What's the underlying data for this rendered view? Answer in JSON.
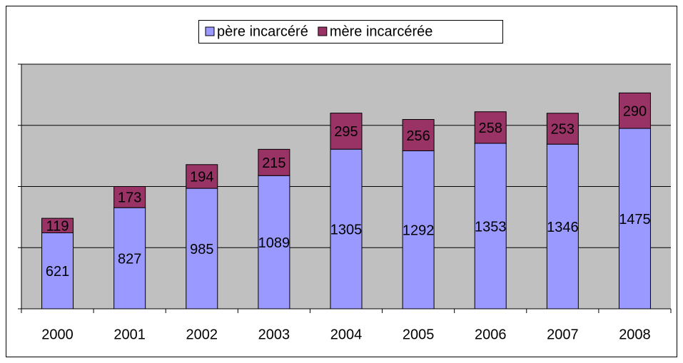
{
  "chart_data": {
    "type": "stacked_bar",
    "categories": [
      "2000",
      "2001",
      "2002",
      "2003",
      "2004",
      "2005",
      "2006",
      "2007",
      "2008"
    ],
    "series": [
      {
        "name": "père incarcéré",
        "color": "#9999ff",
        "values": [
          621,
          827,
          985,
          1089,
          1305,
          1292,
          1353,
          1346,
          1475
        ]
      },
      {
        "name": "mère incarcérée",
        "color": "#993366",
        "values": [
          119,
          173,
          194,
          215,
          295,
          256,
          258,
          253,
          290
        ]
      }
    ],
    "ylim": [
      0,
      2000
    ],
    "yticks": [
      0,
      500,
      1000,
      1500,
      2000
    ],
    "grid": true,
    "legend": "top"
  }
}
